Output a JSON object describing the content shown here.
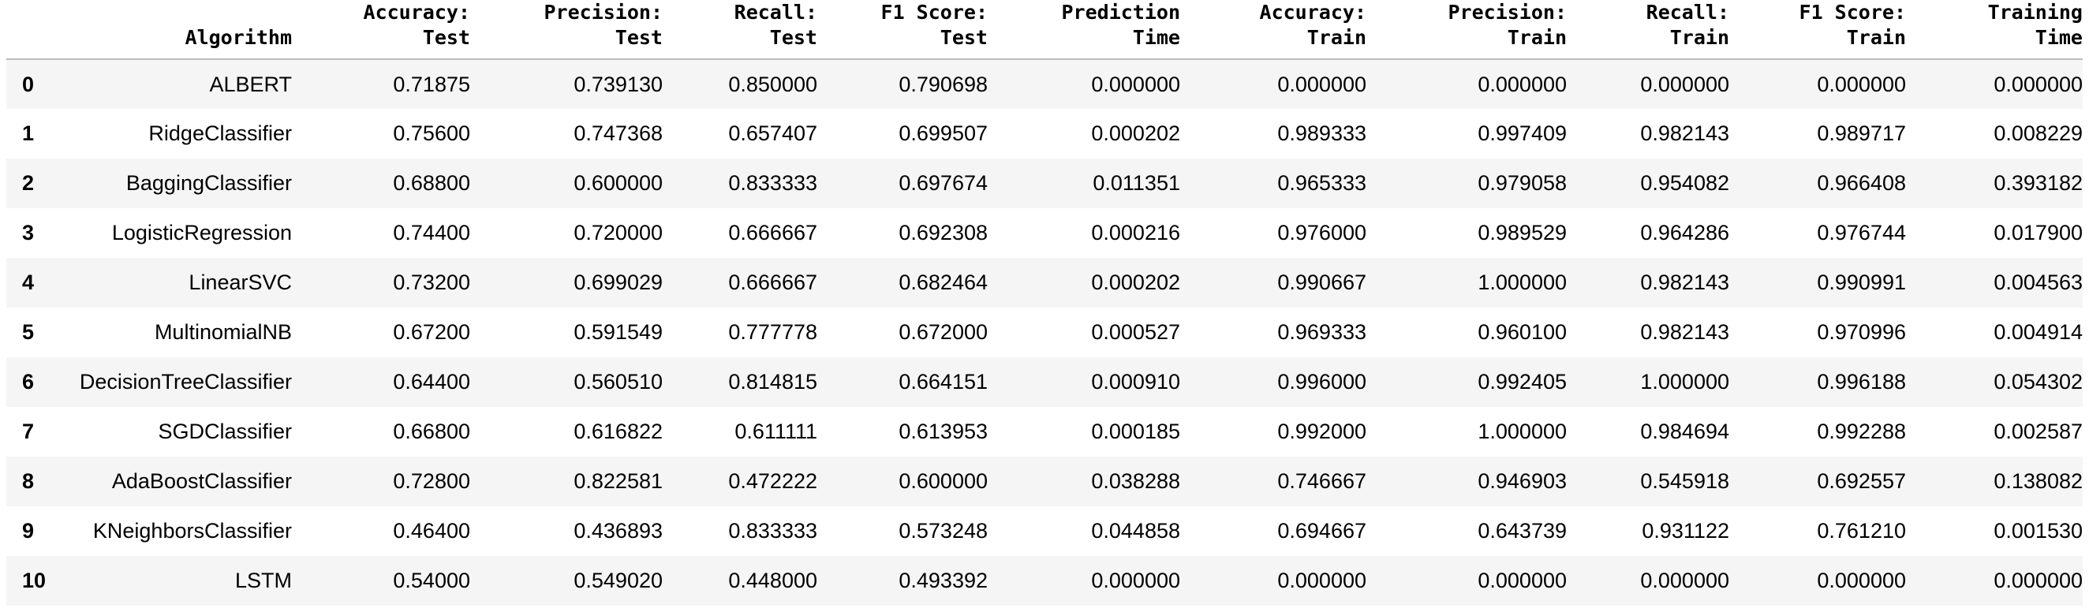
{
  "table": {
    "headers": [
      {
        "line1": "Algorithm",
        "line2": ""
      },
      {
        "line1": "Accuracy:",
        "line2": "Test"
      },
      {
        "line1": "Precision:",
        "line2": "Test"
      },
      {
        "line1": "Recall:",
        "line2": "Test"
      },
      {
        "line1": "F1 Score:",
        "line2": "Test"
      },
      {
        "line1": "Prediction",
        "line2": "Time"
      },
      {
        "line1": "Accuracy:",
        "line2": "Train"
      },
      {
        "line1": "Precision:",
        "line2": "Train"
      },
      {
        "line1": "Recall:",
        "line2": "Train"
      },
      {
        "line1": "F1 Score:",
        "line2": "Train"
      },
      {
        "line1": "Training",
        "line2": "Time"
      }
    ],
    "rows": [
      {
        "index": "0",
        "cells": [
          "ALBERT",
          "0.71875",
          "0.739130",
          "0.850000",
          "0.790698",
          "0.000000",
          "0.000000",
          "0.000000",
          "0.000000",
          "0.000000",
          "0.000000"
        ]
      },
      {
        "index": "1",
        "cells": [
          "RidgeClassifier",
          "0.75600",
          "0.747368",
          "0.657407",
          "0.699507",
          "0.000202",
          "0.989333",
          "0.997409",
          "0.982143",
          "0.989717",
          "0.008229"
        ]
      },
      {
        "index": "2",
        "cells": [
          "BaggingClassifier",
          "0.68800",
          "0.600000",
          "0.833333",
          "0.697674",
          "0.011351",
          "0.965333",
          "0.979058",
          "0.954082",
          "0.966408",
          "0.393182"
        ]
      },
      {
        "index": "3",
        "cells": [
          "LogisticRegression",
          "0.74400",
          "0.720000",
          "0.666667",
          "0.692308",
          "0.000216",
          "0.976000",
          "0.989529",
          "0.964286",
          "0.976744",
          "0.017900"
        ]
      },
      {
        "index": "4",
        "cells": [
          "LinearSVC",
          "0.73200",
          "0.699029",
          "0.666667",
          "0.682464",
          "0.000202",
          "0.990667",
          "1.000000",
          "0.982143",
          "0.990991",
          "0.004563"
        ]
      },
      {
        "index": "5",
        "cells": [
          "MultinomialNB",
          "0.67200",
          "0.591549",
          "0.777778",
          "0.672000",
          "0.000527",
          "0.969333",
          "0.960100",
          "0.982143",
          "0.970996",
          "0.004914"
        ]
      },
      {
        "index": "6",
        "cells": [
          "DecisionTreeClassifier",
          "0.64400",
          "0.560510",
          "0.814815",
          "0.664151",
          "0.000910",
          "0.996000",
          "0.992405",
          "1.000000",
          "0.996188",
          "0.054302"
        ]
      },
      {
        "index": "7",
        "cells": [
          "SGDClassifier",
          "0.66800",
          "0.616822",
          "0.611111",
          "0.613953",
          "0.000185",
          "0.992000",
          "1.000000",
          "0.984694",
          "0.992288",
          "0.002587"
        ]
      },
      {
        "index": "8",
        "cells": [
          "AdaBoostClassifier",
          "0.72800",
          "0.822581",
          "0.472222",
          "0.600000",
          "0.038288",
          "0.746667",
          "0.946903",
          "0.545918",
          "0.692557",
          "0.138082"
        ]
      },
      {
        "index": "9",
        "cells": [
          "KNeighborsClassifier",
          "0.46400",
          "0.436893",
          "0.833333",
          "0.573248",
          "0.044858",
          "0.694667",
          "0.643739",
          "0.931122",
          "0.761210",
          "0.001530"
        ]
      },
      {
        "index": "10",
        "cells": [
          "LSTM",
          "0.54000",
          "0.549020",
          "0.448000",
          "0.493392",
          "0.000000",
          "0.000000",
          "0.000000",
          "0.000000",
          "0.000000",
          "0.000000"
        ]
      }
    ]
  }
}
